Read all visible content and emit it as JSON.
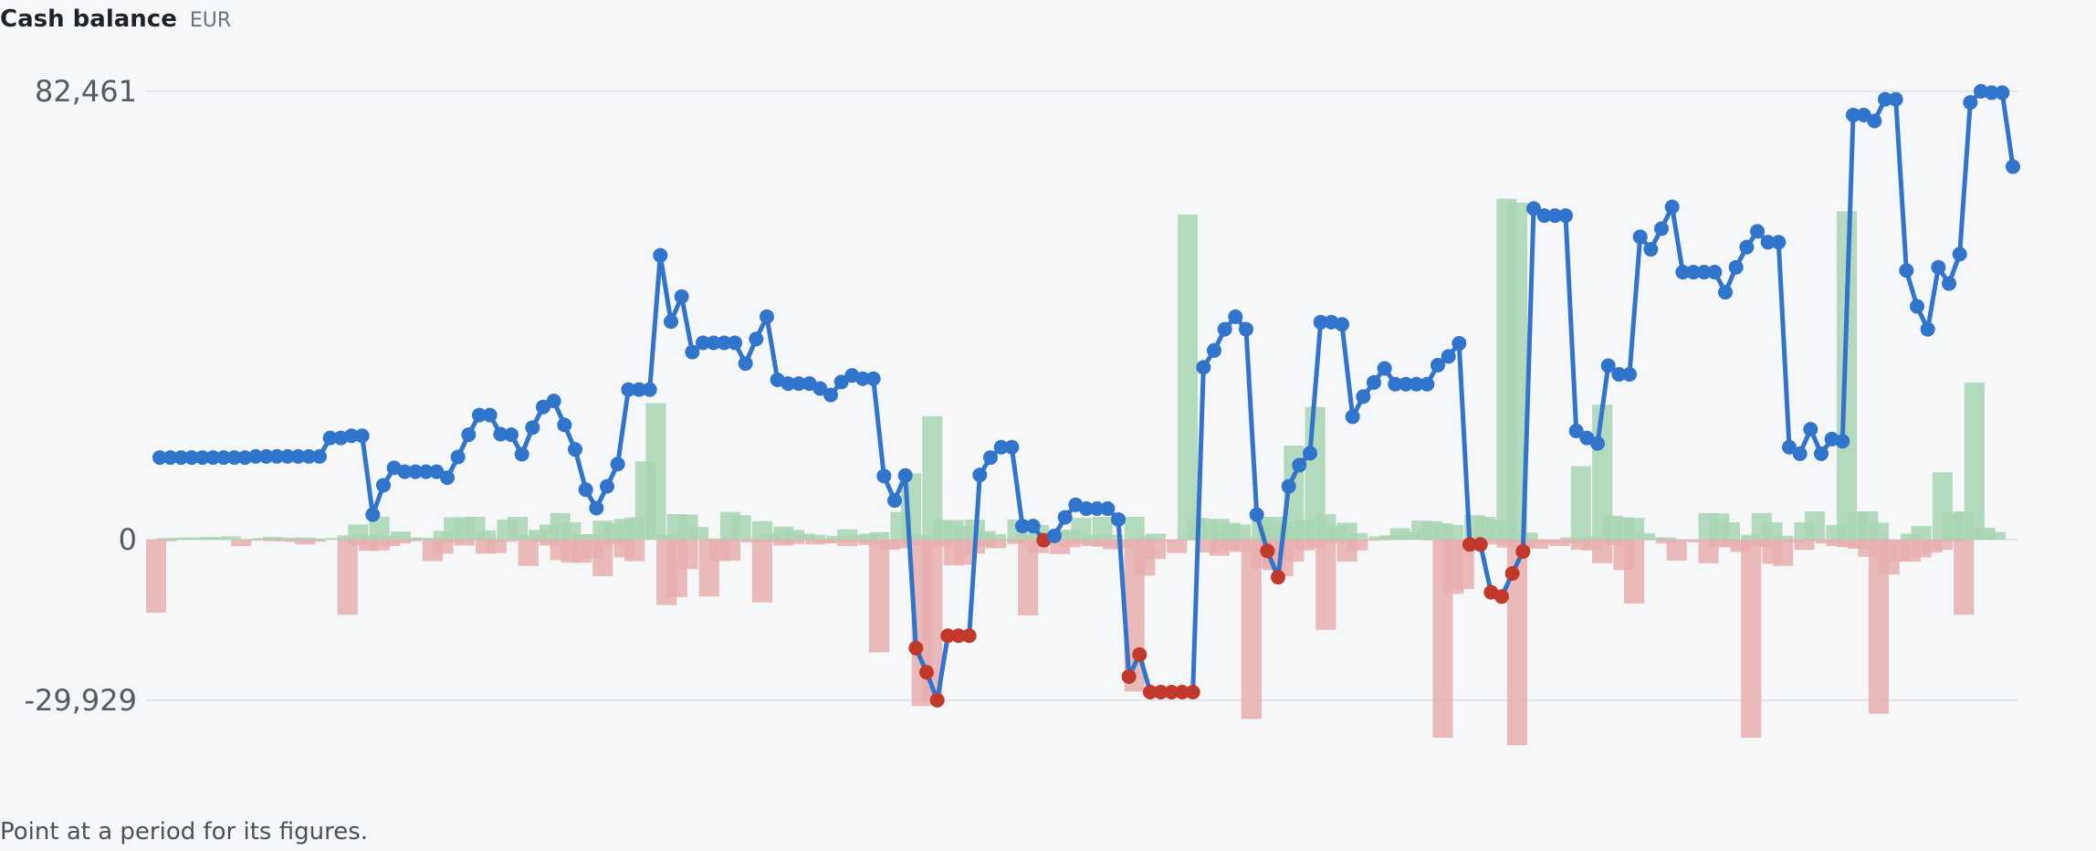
{
  "header": {
    "title": "Cash balance",
    "unit": "EUR"
  },
  "hint": "Point at a period for its figures.",
  "colors": {
    "line": "#3174cc",
    "negative_point": "#c0392b",
    "inflow_bar": "#a8d5b3",
    "outflow_bar": "#e8aeae",
    "grid": "#e1e4e8"
  },
  "chart_data": {
    "type": "line",
    "title": "Cash balance",
    "unit": "EUR",
    "y_ticks": [
      {
        "value": 82461,
        "label": "82,461"
      },
      {
        "value": 0,
        "label": "0"
      },
      {
        "value": -29929,
        "label": "-29,929"
      }
    ],
    "ylim": [
      -29929,
      82461
    ],
    "grid": true,
    "balance": [
      15100,
      15100,
      15100,
      15100,
      15100,
      15100,
      15100,
      15100,
      15100,
      15300,
      15300,
      15300,
      15300,
      15300,
      15300,
      15300,
      18700,
      18700,
      19100,
      19100,
      4600,
      10000,
      13200,
      12500,
      12500,
      12500,
      12500,
      11400,
      15200,
      19300,
      22900,
      22900,
      19400,
      19300,
      15700,
      20600,
      24400,
      25500,
      21100,
      16600,
      9200,
      5800,
      9800,
      13900,
      27600,
      27600,
      27600,
      52300,
      40100,
      44700,
      34500,
      36200,
      36200,
      36200,
      36200,
      32400,
      36900,
      41000,
      29400,
      28700,
      28700,
      28700,
      27800,
      26600,
      29000,
      30200,
      29600,
      29600,
      11700,
      7200,
      11800,
      -20200,
      -24700,
      -29900,
      -17900,
      -17900,
      -17900,
      11900,
      15100,
      17000,
      17000,
      2500,
      2500,
      -100,
      700,
      4100,
      6400,
      5700,
      5700,
      5700,
      3700,
      -25500,
      -21400,
      -28400,
      -28400,
      -28400,
      -28400,
      -28400,
      31700,
      34800,
      38700,
      41000,
      38700,
      4600,
      -2100,
      -7000,
      9800,
      13700,
      15900,
      40000,
      40000,
      39600,
      22600,
      26300,
      28900,
      31500,
      28600,
      28600,
      28600,
      28600,
      32100,
      33700,
      36100,
      -900,
      -900,
      -9800,
      -10600,
      -6300,
      -2200,
      60900,
      59600,
      59600,
      59600,
      20000,
      18700,
      17700,
      32000,
      30400,
      30400,
      55700,
      53400,
      57200,
      61200,
      49200,
      49200,
      49200,
      49200,
      45500,
      50100,
      53800,
      56700,
      54700,
      54700,
      17000,
      15800,
      20300,
      15800,
      18500,
      18100,
      78100,
      78100,
      77000,
      81000,
      81000,
      49500,
      42900,
      38700,
      50100,
      47100,
      52500,
      80400,
      82461,
      82200,
      82200,
      68600
    ],
    "inflows": [
      0,
      300,
      300,
      400,
      300,
      500,
      300,
      600,
      0,
      100,
      300,
      500,
      300,
      300,
      400,
      200,
      200,
      300,
      800,
      2800,
      800,
      4200,
      700,
      1500,
      400,
      300,
      300,
      1600,
      4100,
      4100,
      4200,
      1700,
      200,
      3700,
      4200,
      800,
      1800,
      2800,
      4900,
      3200,
      1000,
      1000,
      3500,
      3000,
      3800,
      4100,
      14400,
      25100,
      1000,
      4700,
      4600,
      2300,
      200,
      200,
      5100,
      4500,
      200,
      3400,
      1100,
      2400,
      1800,
      1100,
      900,
      200,
      700,
      1900,
      800,
      1100,
      1400,
      0,
      5100,
      12200,
      800,
      22700,
      3600,
      3600,
      2500,
      3700,
      1600,
      1000,
      0,
      3700,
      1000,
      2700,
      1300,
      1800,
      1800,
      4000,
      900,
      4200,
      900,
      0,
      4200,
      600,
      1100,
      0,
      0,
      59800,
      4000,
      3800,
      3800,
      3100,
      2800,
      400,
      4000,
      4200,
      3200,
      17300,
      3700,
      24400,
      4700,
      2600,
      3100,
      1200,
      0,
      600,
      800,
      2100,
      1400,
      3500,
      3400,
      3000,
      2700,
      0,
      4500,
      4200,
      3700,
      62700,
      62000,
      1300,
      0,
      0,
      0,
      400,
      13500,
      600,
      24800,
      4400,
      4100,
      4000,
      1200,
      400,
      400,
      0,
      0,
      0,
      4900,
      4800,
      3200,
      0,
      900,
      4900,
      3200,
      700,
      0,
      3200,
      5200,
      0,
      2700,
      60400,
      5200,
      5200,
      3100,
      0,
      0,
      1100,
      2500,
      0,
      12400,
      5000,
      5200,
      28900,
      2200,
      1400,
      0,
      0
    ],
    "outflows": [
      -13600,
      -300,
      0,
      0,
      0,
      0,
      0,
      0,
      -1200,
      -200,
      0,
      -300,
      -300,
      -400,
      -900,
      -400,
      0,
      0,
      -14000,
      -1000,
      -2100,
      -2000,
      -1200,
      -700,
      -300,
      0,
      -4000,
      -2600,
      -600,
      -1100,
      -200,
      -2600,
      -2500,
      -400,
      0,
      -4900,
      -400,
      -1100,
      -3800,
      -4300,
      -4300,
      -3500,
      -6800,
      -900,
      -3300,
      -4000,
      0,
      0,
      -12200,
      -10700,
      -5500,
      0,
      -10600,
      -4000,
      -3900,
      -200,
      -500,
      -11700,
      -400,
      -1100,
      -800,
      -200,
      -900,
      -700,
      -600,
      -1200,
      -600,
      -1000,
      -21000,
      -1900,
      -1600,
      -1000,
      -31000,
      -30000,
      -1300,
      -4800,
      -4700,
      -2600,
      -1400,
      -1600,
      -200,
      -800,
      -14100,
      -2500,
      -900,
      -2700,
      -1400,
      -800,
      -1200,
      -1300,
      -1800,
      -1500,
      -28300,
      -6700,
      -3600,
      -400,
      -2500,
      -100,
      0,
      -2400,
      -3000,
      -2100,
      -2300,
      -33400,
      -5400,
      -5700,
      -6800,
      -4100,
      -2000,
      -1500,
      -16800,
      -600,
      -4100,
      -2000,
      -200,
      -100,
      0,
      0,
      0,
      0,
      -100,
      -36900,
      -10100,
      -9200,
      -1800,
      -200,
      -900,
      -1500,
      -38300,
      -1400,
      -1700,
      -700,
      -1200,
      -700,
      -1900,
      -2000,
      -4400,
      -1000,
      -5700,
      -11900,
      0,
      -100,
      -700,
      -3900,
      -200,
      -500,
      -4400,
      -1400,
      -1400,
      -2300,
      -36900,
      -1400,
      -4500,
      -4900,
      -500,
      -1900,
      -200,
      -700,
      -1200,
      -1400,
      -1700,
      -3200,
      -32400,
      -6500,
      -4100,
      -4100,
      -3300,
      -2400,
      -1900,
      -300,
      -14000
    ]
  }
}
